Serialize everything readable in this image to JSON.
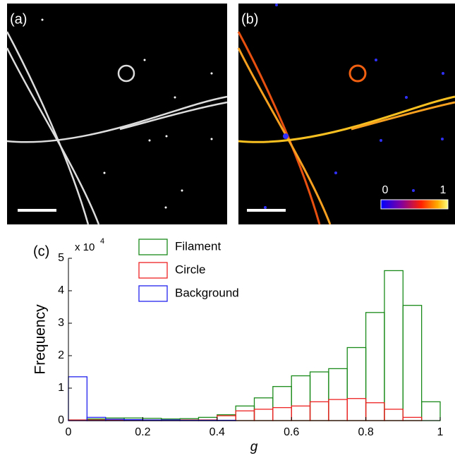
{
  "panels": {
    "a": "(a)",
    "b": "(b)",
    "c": "(c)"
  },
  "colorbar": {
    "ticks": [
      0,
      1
    ]
  },
  "chart_data": {
    "type": "histogram",
    "ylabel": "Frequency",
    "xlabel": "g",
    "y_multiplier": {
      "base": "x 10",
      "exponent": "4"
    },
    "bins": [
      0,
      0.05,
      0.1,
      0.15,
      0.2,
      0.25,
      0.3,
      0.35,
      0.4,
      0.45,
      0.5,
      0.55,
      0.6,
      0.65,
      0.7,
      0.75,
      0.8,
      0.85,
      0.9,
      0.95,
      1
    ],
    "series": [
      {
        "name": "Filament",
        "color": "#1a8a1a",
        "values": [
          0,
          0.05,
          0.08,
          0.08,
          0.07,
          0.05,
          0.06,
          0.1,
          0.18,
          0.45,
          0.7,
          1.05,
          1.38,
          1.5,
          1.6,
          2.25,
          3.33,
          4.62,
          3.55,
          0.58
        ]
      },
      {
        "name": "Circle",
        "color": "#ee2222",
        "values": [
          0.02,
          0.02,
          0.02,
          0.02,
          0.02,
          0.02,
          0.02,
          0.02,
          0.15,
          0.3,
          0.35,
          0.4,
          0.45,
          0.58,
          0.65,
          0.68,
          0.55,
          0.35,
          0.1,
          0
        ]
      },
      {
        "name": "Background",
        "color": "#2222ee",
        "values": [
          1.35,
          0.1,
          0.04,
          0.03,
          0.02,
          0.02,
          0.01,
          0.01,
          0.01,
          0,
          0,
          0,
          0,
          0,
          0,
          0,
          0,
          0,
          0,
          0
        ]
      }
    ],
    "xlim": [
      0,
      1
    ],
    "ylim": [
      0,
      5
    ],
    "xticks": [
      0,
      0.2,
      0.4,
      0.6,
      0.8,
      1
    ],
    "yticks": [
      0,
      1,
      2,
      3,
      4,
      5
    ]
  }
}
